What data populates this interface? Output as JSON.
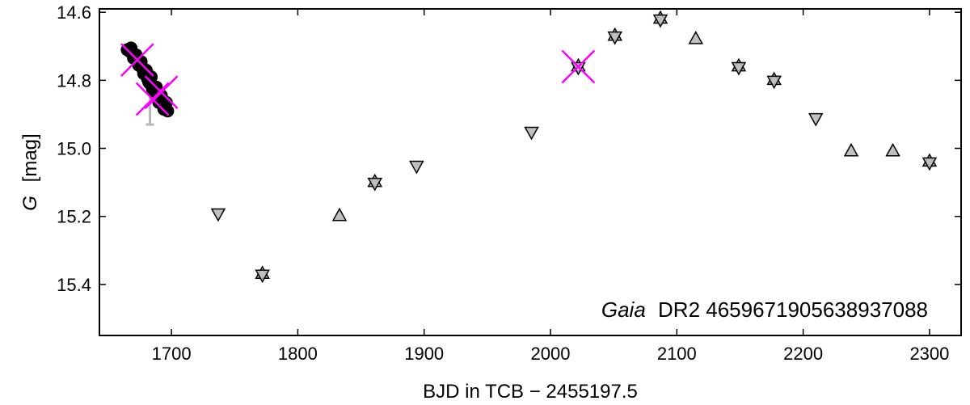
{
  "chart_data": {
    "type": "scatter",
    "title": "",
    "xlabel": "BJD in TCB − 2455197.5",
    "ylabel_italic": "G",
    "ylabel_unit": "[mag]",
    "annotation_italic": "Gaia",
    "annotation_rest": "DR2 4659671905638937088",
    "xlim": [
      1643,
      2325
    ],
    "ylim": [
      15.55,
      14.59
    ],
    "y_inverted": true,
    "grid": false,
    "x_ticks": [
      1700,
      1800,
      1900,
      2000,
      2100,
      2200,
      2300
    ],
    "x_tick_labels": [
      "1700",
      "1800",
      "1900",
      "2000",
      "2100",
      "2200",
      "2300"
    ],
    "y_ticks": [
      14.6,
      14.8,
      15.0,
      15.2,
      15.4
    ],
    "y_tick_labels": [
      "14.6",
      "14.8",
      "15.0",
      "15.2",
      "15.4"
    ],
    "colors": {
      "dense_series": "#000000",
      "marker_fill": "#c0c0c0",
      "marker_stroke": "#000000",
      "rejected_cross": "#ff00ff",
      "errorbar": "#b8b8b8"
    },
    "dense_points": [
      {
        "x": 1665,
        "y": 14.71
      },
      {
        "x": 1667,
        "y": 14.715
      },
      {
        "x": 1669,
        "y": 14.72
      },
      {
        "x": 1671,
        "y": 14.73
      },
      {
        "x": 1673,
        "y": 14.74
      },
      {
        "x": 1675,
        "y": 14.75
      },
      {
        "x": 1677,
        "y": 14.765
      },
      {
        "x": 1679,
        "y": 14.78
      },
      {
        "x": 1681,
        "y": 14.795
      },
      {
        "x": 1683,
        "y": 14.81
      },
      {
        "x": 1685,
        "y": 14.825
      },
      {
        "x": 1687,
        "y": 14.84
      },
      {
        "x": 1689,
        "y": 14.85
      },
      {
        "x": 1691,
        "y": 14.86
      },
      {
        "x": 1693,
        "y": 14.87
      },
      {
        "x": 1695,
        "y": 14.88
      },
      {
        "x": 1697,
        "y": 14.89
      },
      {
        "x": 1668,
        "y": 14.705
      },
      {
        "x": 1672,
        "y": 14.725
      },
      {
        "x": 1676,
        "y": 14.745
      },
      {
        "x": 1680,
        "y": 14.77
      },
      {
        "x": 1684,
        "y": 14.79
      },
      {
        "x": 1688,
        "y": 14.82
      },
      {
        "x": 1692,
        "y": 14.845
      },
      {
        "x": 1696,
        "y": 14.865
      },
      {
        "x": 1670,
        "y": 14.735
      },
      {
        "x": 1674,
        "y": 14.755
      },
      {
        "x": 1678,
        "y": 14.78
      },
      {
        "x": 1682,
        "y": 14.805
      },
      {
        "x": 1686,
        "y": 14.835
      },
      {
        "x": 1690,
        "y": 14.865
      },
      {
        "x": 1694,
        "y": 14.885
      }
    ],
    "rejected_points": [
      {
        "x": 1673,
        "y": 14.74
      },
      {
        "x": 1685,
        "y": 14.855
      },
      {
        "x": 1692,
        "y": 14.835
      },
      {
        "x": 2022,
        "y": 14.76
      }
    ],
    "errorbar_points": [
      {
        "x": 1683,
        "y": 14.85,
        "low": 14.77,
        "high": 14.93
      }
    ],
    "markers": [
      {
        "x": 1737,
        "y": 15.19,
        "kind": "down"
      },
      {
        "x": 1772,
        "y": 15.37,
        "kind": "both"
      },
      {
        "x": 1833,
        "y": 15.2,
        "kind": "up"
      },
      {
        "x": 1861,
        "y": 15.1,
        "kind": "both"
      },
      {
        "x": 1894,
        "y": 15.05,
        "kind": "down"
      },
      {
        "x": 1985,
        "y": 14.95,
        "kind": "down"
      },
      {
        "x": 2022,
        "y": 14.76,
        "kind": "both"
      },
      {
        "x": 2051,
        "y": 14.67,
        "kind": "both"
      },
      {
        "x": 2087,
        "y": 14.62,
        "kind": "both"
      },
      {
        "x": 2115,
        "y": 14.68,
        "kind": "up"
      },
      {
        "x": 2149,
        "y": 14.76,
        "kind": "both"
      },
      {
        "x": 2177,
        "y": 14.8,
        "kind": "both"
      },
      {
        "x": 2210,
        "y": 14.91,
        "kind": "down"
      },
      {
        "x": 2238,
        "y": 15.01,
        "kind": "up"
      },
      {
        "x": 2271,
        "y": 15.01,
        "kind": "up"
      },
      {
        "x": 2300,
        "y": 15.04,
        "kind": "both"
      }
    ]
  }
}
